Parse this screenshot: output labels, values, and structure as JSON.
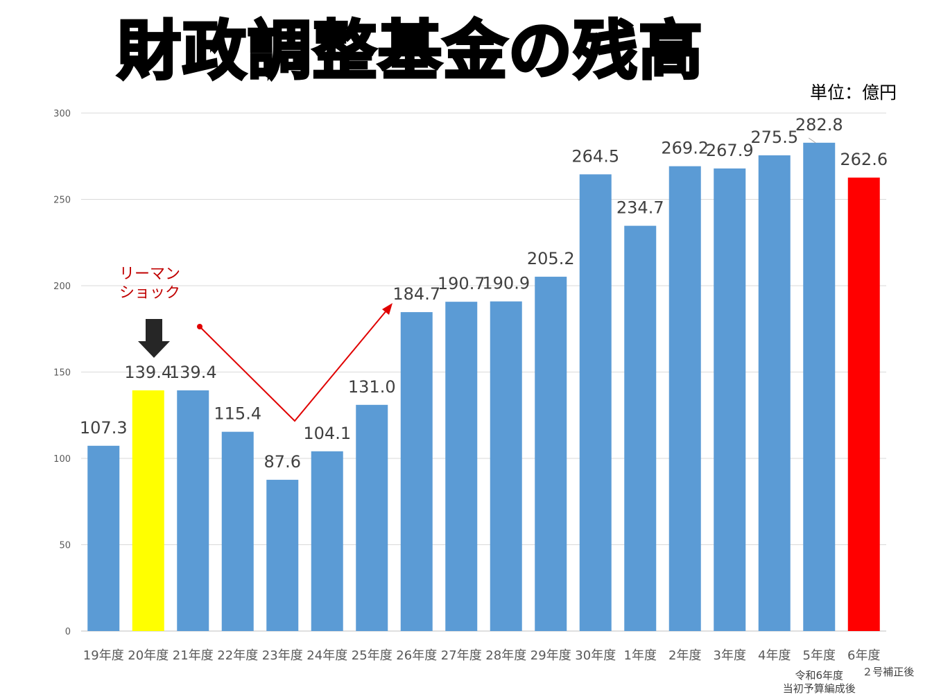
{
  "chart_data": {
    "type": "bar",
    "title": "財政調整基金の残高",
    "unit_label": "単位：億円",
    "categories": [
      "19年度",
      "20年度",
      "21年度",
      "22年度",
      "23年度",
      "24年度",
      "25年度",
      "26年度",
      "27年度",
      "28年度",
      "29年度",
      "30年度",
      "1年度",
      "2年度",
      "3年度",
      "4年度",
      "5年度",
      "6年度"
    ],
    "values": [
      107.3,
      139.4,
      139.4,
      115.4,
      87.6,
      104.1,
      131.0,
      184.7,
      190.7,
      190.9,
      205.2,
      264.5,
      234.7,
      269.2,
      267.9,
      275.5,
      282.8,
      262.6
    ],
    "value_labels": [
      "107.3",
      "139.4",
      "139.4",
      "115.4",
      "87.6",
      "104.1",
      "131.0",
      "184.7",
      "190.7",
      "190.9",
      "205.2",
      "264.5",
      "234.7",
      "269.2",
      "267.9",
      "275.5",
      "282.8",
      "262.6"
    ],
    "bar_colors": [
      "#5b9bd5",
      "#ffff00",
      "#5b9bd5",
      "#5b9bd5",
      "#5b9bd5",
      "#5b9bd5",
      "#5b9bd5",
      "#5b9bd5",
      "#5b9bd5",
      "#5b9bd5",
      "#5b9bd5",
      "#5b9bd5",
      "#5b9bd5",
      "#5b9bd5",
      "#5b9bd5",
      "#5b9bd5",
      "#5b9bd5",
      "#ff0000"
    ],
    "ylim": [
      0,
      300
    ],
    "yticks": [
      0,
      50,
      100,
      150,
      200,
      250,
      300
    ],
    "grid": true,
    "notes": {
      "5年度": [
        "令和6年度",
        "当初予算編成後"
      ],
      "6年度": [
        "２号補正後"
      ]
    },
    "annotations": {
      "lehman": [
        "リーマン",
        "ショック"
      ]
    }
  }
}
